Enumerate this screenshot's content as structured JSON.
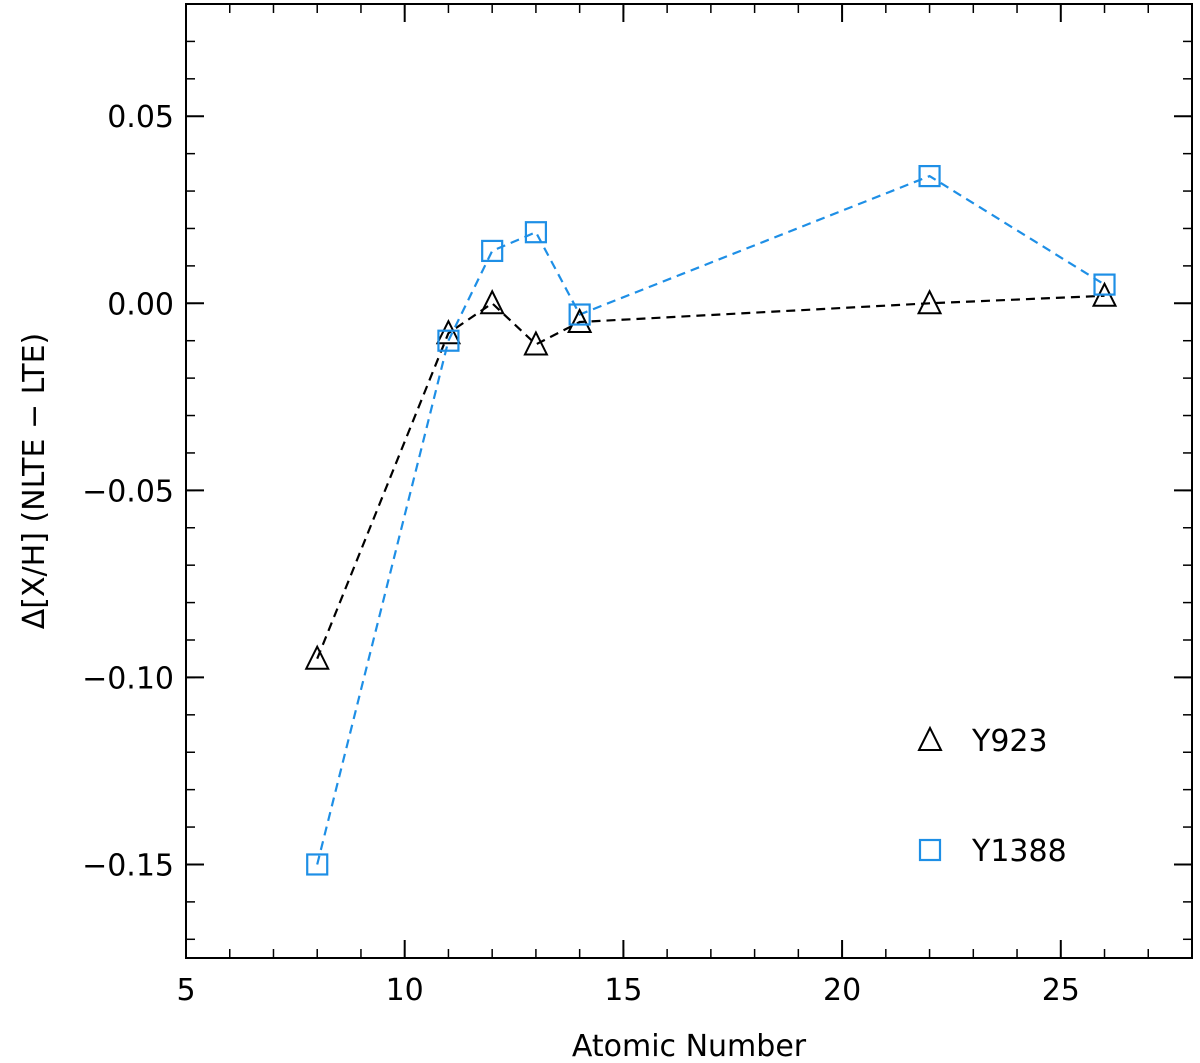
{
  "chart_data": {
    "type": "line",
    "title": "",
    "xlabel": "Atomic Number",
    "ylabel": "Δ[X/H] (NLTE − LTE)",
    "xlim": [
      5,
      28
    ],
    "ylim": [
      -0.175,
      0.08
    ],
    "xticks": [
      5,
      10,
      15,
      20,
      25
    ],
    "xtick_labels": [
      "5",
      "10",
      "15",
      "20",
      "25"
    ],
    "xminor_step": 1,
    "yticks": [
      -0.15,
      -0.1,
      -0.05,
      0.0,
      0.05
    ],
    "ytick_labels": [
      "−0.15",
      "−0.10",
      "−0.05",
      "0.00",
      "0.05"
    ],
    "yminor_step": 0.01,
    "grid": false,
    "legend_position": "bottom-right",
    "series": [
      {
        "name": "Y923",
        "marker": "triangle",
        "line_style": "dashed",
        "color": "#000000",
        "x": [
          8,
          11,
          12,
          13,
          14,
          22,
          26
        ],
        "y": [
          -0.095,
          -0.008,
          0.0,
          -0.011,
          -0.005,
          0.0,
          0.002
        ]
      },
      {
        "name": "Y1388",
        "marker": "square",
        "line_style": "dashed",
        "color": "#1e8fe6",
        "x": [
          8,
          11,
          12,
          13,
          14,
          22,
          26
        ],
        "y": [
          -0.15,
          -0.01,
          0.014,
          0.019,
          -0.003,
          0.034,
          0.005
        ]
      }
    ]
  }
}
